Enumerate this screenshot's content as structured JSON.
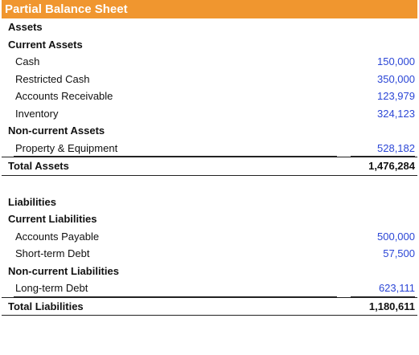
{
  "title": "Partial Balance Sheet",
  "assets": {
    "heading": "Assets",
    "current_heading": "Current Assets",
    "current_items": [
      {
        "label": "Cash",
        "value": "150,000"
      },
      {
        "label": "Restricted Cash",
        "value": "350,000"
      },
      {
        "label": "Accounts Receivable",
        "value": "123,979"
      },
      {
        "label": "Inventory",
        "value": "324,123"
      }
    ],
    "noncurrent_heading": "Non-current Assets",
    "noncurrent_items": [
      {
        "label": "Property & Equipment",
        "value": "528,182"
      }
    ],
    "total_label": "Total Assets",
    "total_value": "1,476,284"
  },
  "liabilities": {
    "heading": "Liabilities",
    "current_heading": "Current Liabilities",
    "current_items": [
      {
        "label": "Accounts Payable",
        "value": "500,000"
      },
      {
        "label": "Short-term Debt",
        "value": "57,500"
      }
    ],
    "noncurrent_heading": "Non-current Liabilities",
    "noncurrent_items": [
      {
        "label": "Long-term Debt",
        "value": "623,111"
      }
    ],
    "total_label": "Total Liabilities",
    "total_value": "1,180,611"
  },
  "colors": {
    "header_bg": "#f0962f",
    "value_blue": "#2b46d6"
  }
}
